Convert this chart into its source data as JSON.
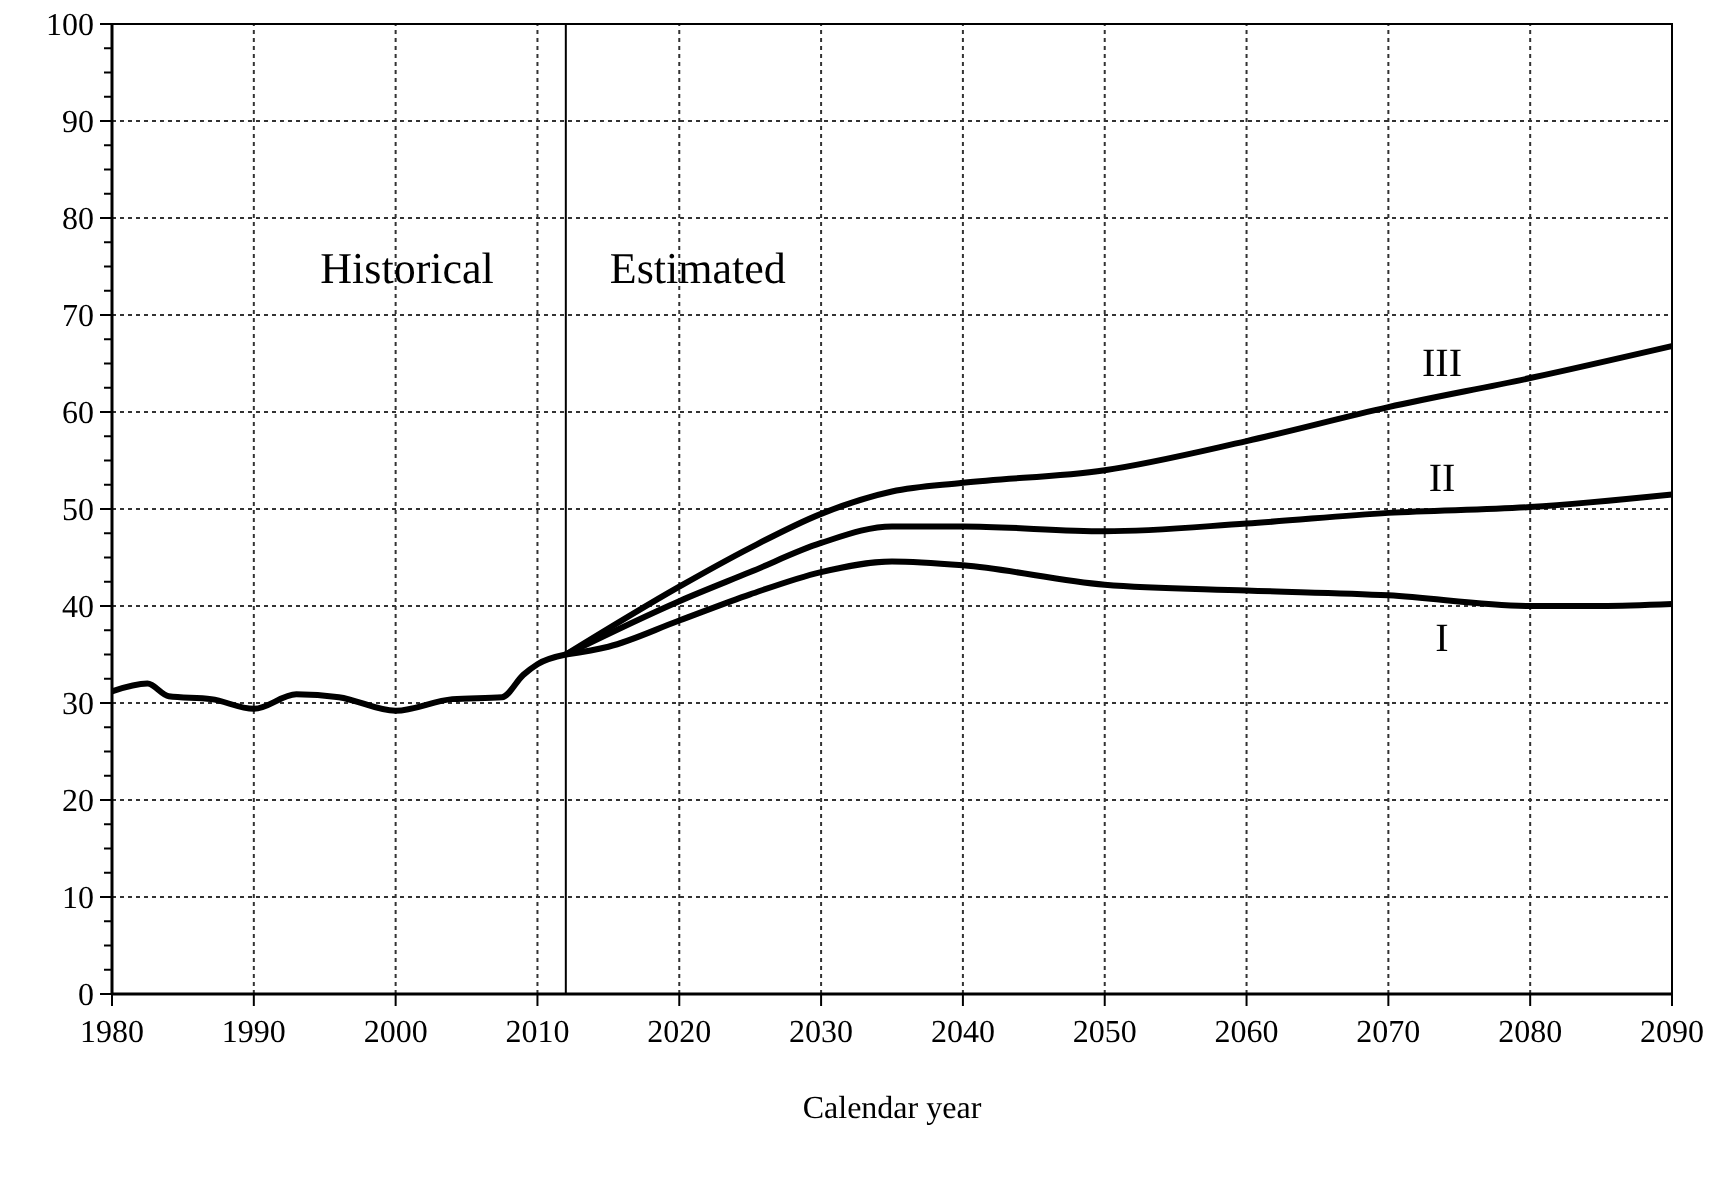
{
  "chart_data": {
    "type": "line",
    "xlabel": "Calendar year",
    "xlim": [
      1980,
      2090
    ],
    "xticks": [
      1980,
      1990,
      2000,
      2010,
      2020,
      2030,
      2040,
      2050,
      2060,
      2070,
      2080,
      2090
    ],
    "ylim": [
      0,
      100
    ],
    "yticks": [
      0,
      {
        "value": 2.5,
        "label": null
      },
      {
        "value": 5,
        "label": null
      },
      {
        "value": 7.5,
        "label": null
      },
      10,
      {
        "value": 12.5,
        "label": null
      },
      {
        "value": 15,
        "label": null
      },
      {
        "value": 17.5,
        "label": null
      },
      20,
      {
        "value": 22.5,
        "label": null
      },
      {
        "value": 25,
        "label": null
      },
      {
        "value": 27.5,
        "label": null
      },
      30,
      {
        "value": 32.5,
        "label": null
      },
      {
        "value": 35,
        "label": null
      },
      {
        "value": 37.5,
        "label": null
      },
      40,
      {
        "value": 42.5,
        "label": null
      },
      {
        "value": 45,
        "label": null
      },
      {
        "value": 47.5,
        "label": null
      },
      50,
      {
        "value": 52.5,
        "label": null
      },
      {
        "value": 55,
        "label": null
      },
      {
        "value": 57.5,
        "label": null
      },
      60,
      {
        "value": 62.5,
        "label": null
      },
      {
        "value": 65,
        "label": null
      },
      {
        "value": 67.5,
        "label": null
      },
      70,
      {
        "value": 72.5,
        "label": null
      },
      {
        "value": 75,
        "label": null
      },
      {
        "value": 77.5,
        "label": null
      },
      80,
      {
        "value": 82.5,
        "label": null
      },
      {
        "value": 85,
        "label": null
      },
      {
        "value": 87.5,
        "label": null
      },
      90,
      {
        "value": 92.5,
        "label": null
      },
      {
        "value": 95,
        "label": null
      },
      {
        "value": 97.5,
        "label": null
      },
      100
    ],
    "grid": true,
    "marker": "none",
    "line_style": "solid",
    "ref_lines": [
      {
        "axis": "x",
        "value": 2012,
        "color": "#000000"
      }
    ],
    "annotations": [
      "Historical",
      "Estimated"
    ],
    "series": [
      {
        "color": "#000000",
        "x": [
          1980,
          1982.5,
          1984,
          1987,
          1990,
          1993,
          1996,
          2000,
          2004,
          2007.5,
          2009,
          2010,
          2012
        ],
        "values": [
          31.2,
          32,
          30.7,
          30.4,
          29.4,
          30.9,
          30.6,
          29.2,
          30.4,
          30.6,
          32.9,
          34,
          35
        ]
      },
      {
        "name": "I",
        "color": "#000000",
        "x": [
          2012,
          2015,
          2020,
          2025,
          2030,
          2035,
          2040,
          2050,
          2060,
          2070,
          2080,
          2085,
          2090
        ],
        "values": [
          35,
          35.8,
          38.5,
          41.2,
          43.5,
          44.6,
          44.2,
          42.2,
          41.6,
          41.1,
          40,
          40,
          40.2
        ]
      },
      {
        "name": "II",
        "color": "#000000",
        "x": [
          2012,
          2020,
          2025,
          2030,
          2035,
          2040,
          2050,
          2060,
          2070,
          2080,
          2090
        ],
        "values": [
          35,
          40.5,
          43.5,
          46.5,
          48.2,
          48.2,
          47.7,
          48.5,
          49.6,
          50.2,
          51.5
        ]
      },
      {
        "name": "III",
        "color": "#000000",
        "x": [
          2012,
          2020,
          2025,
          2030,
          2035,
          2040,
          2050,
          2060,
          2070,
          2080,
          2090
        ],
        "values": [
          35,
          42,
          46,
          49.5,
          51.8,
          52.7,
          54,
          57,
          60.5,
          63.5,
          66.8
        ]
      }
    ]
  }
}
